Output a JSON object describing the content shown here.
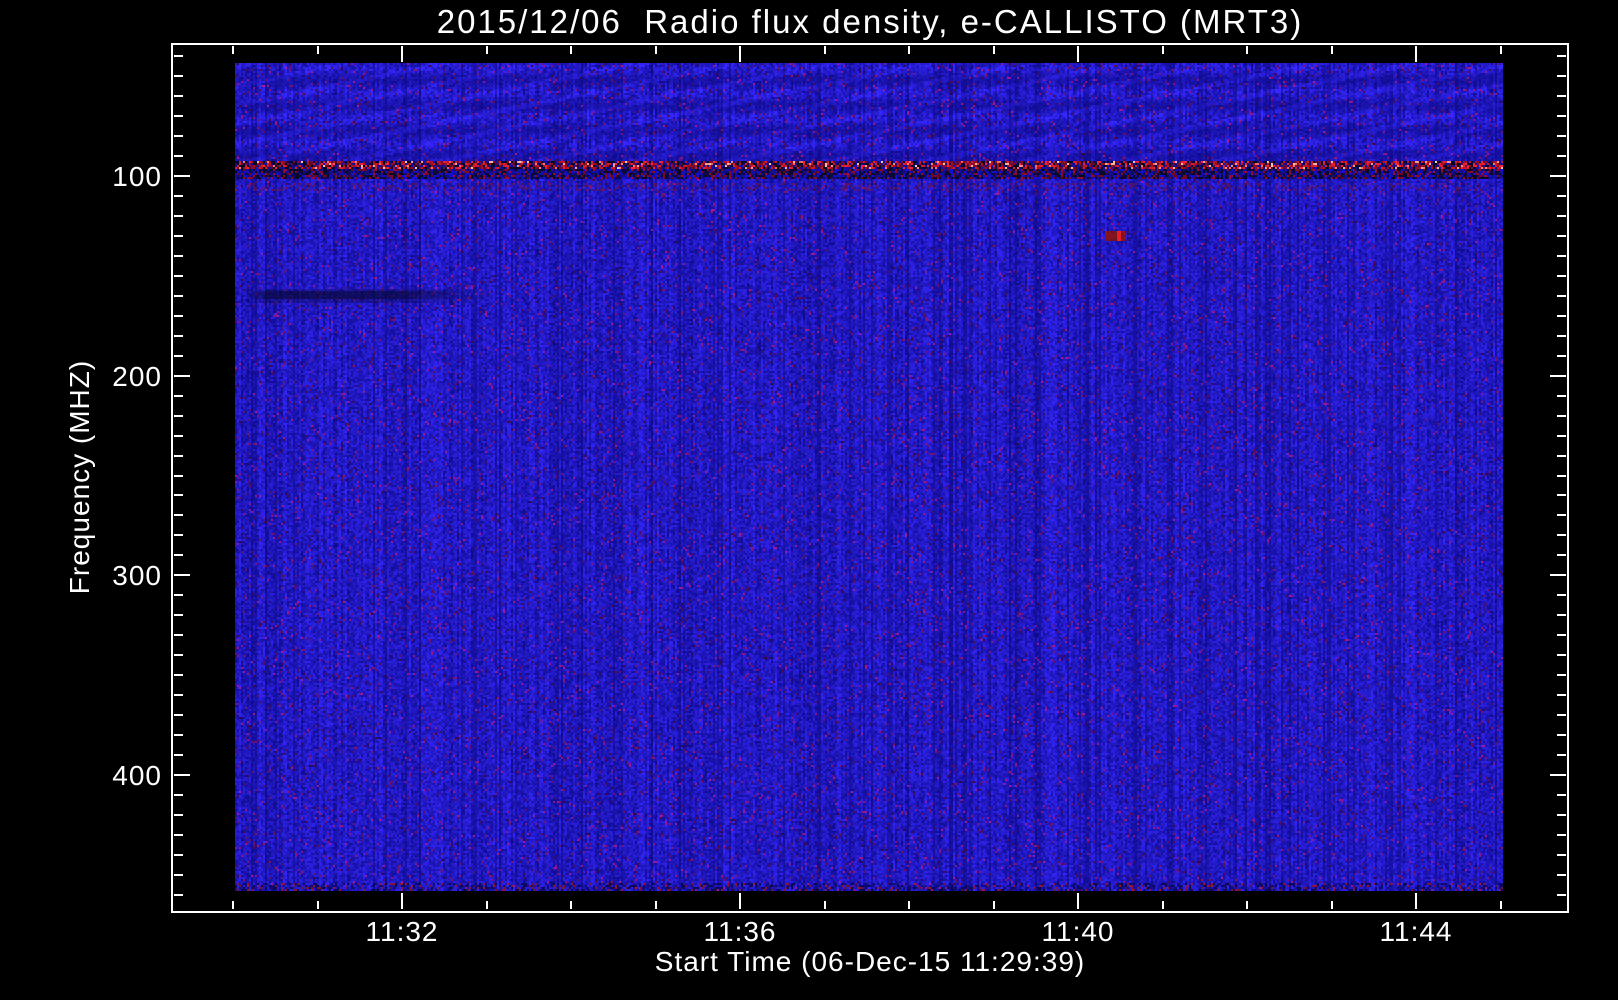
{
  "chart_data": {
    "type": "heatmap",
    "title": "2015/12/06  Radio flux density, e-CALLISTO (MRT3)",
    "xlabel": "Start Time (06-Dec-15 11:29:39)",
    "ylabel": "Frequency (MHZ)",
    "x_axis": {
      "tick_labels": [
        "11:32",
        "11:36",
        "11:40",
        "11:44"
      ],
      "minor_tick_interval": "1 minute",
      "range_start": "11:29:39",
      "range_end": "approx 11:45:50"
    },
    "y_axis": {
      "tick_labels": [
        "100",
        "200",
        "300",
        "400"
      ],
      "tick_values_mhz": [
        100,
        200,
        300,
        400
      ],
      "minor_tick_interval_mhz": 10,
      "data_range_mhz": [
        45,
        458
      ],
      "inverted": true
    },
    "legend": "none",
    "grid": "off",
    "colors": {
      "page_background": "#000000",
      "axis_and_text": "#ffffff",
      "heatmap_base_blue": "#1f16d8",
      "heatmap_dark_stripe": "#140e6e",
      "rfi_red": "#c41e1e",
      "rfi_black": "#08061e",
      "rfi_bright": "#f5a0a0"
    },
    "features": [
      {
        "kind": "rfi-band",
        "freq_mhz": "93-106",
        "time_span": "entire record",
        "appearance": "dense red/black/white speckled horizontal band"
      },
      {
        "kind": "faint-red-band",
        "freq_mhz": "104-108",
        "time_span": "entire record",
        "appearance": "sparse dark-red speckle row"
      },
      {
        "kind": "dark-streak",
        "freq_mhz": "155-162",
        "time_span": "11:30-11:33",
        "appearance": "dark horizontal absorption smear fading to the right"
      },
      {
        "kind": "point-burst",
        "freq_mhz": "127-132",
        "time": "11:40:30",
        "appearance": "small dark-red blob with bright red sliver"
      },
      {
        "kind": "texture",
        "freq_mhz": "45-90",
        "time_span": "entire record",
        "appearance": "diagonal light-blue interference weave"
      }
    ]
  }
}
